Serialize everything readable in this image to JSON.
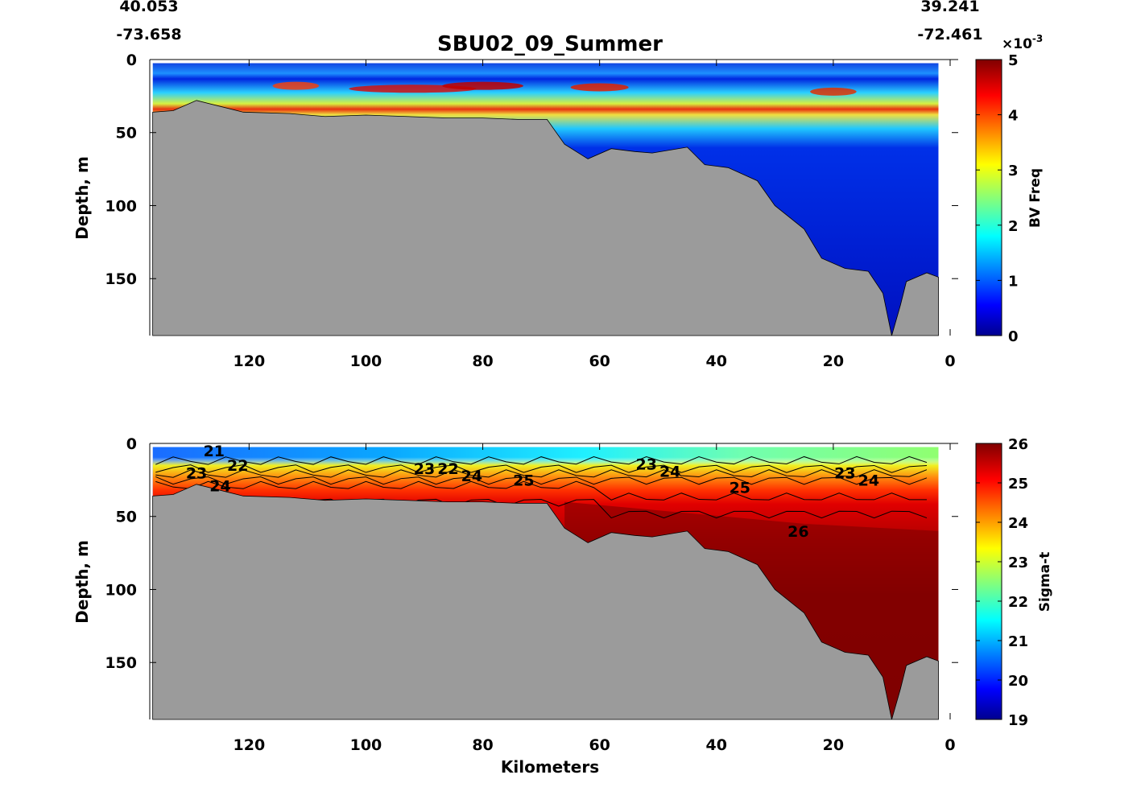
{
  "chart_data": [
    {
      "type": "heatmap",
      "title": "SBU02_09_Summer",
      "corner_labels": {
        "left_lat": "40.053",
        "left_lon": "-73.658",
        "right_lat": "39.241",
        "right_lon": "-72.461"
      },
      "xlabel": "",
      "ylabel": "Depth, m",
      "xlim": [
        137,
        0
      ],
      "ylim": [
        189,
        0
      ],
      "xticks": [
        "120",
        "100",
        "80",
        "60",
        "40",
        "20",
        "0"
      ],
      "xtick_values": [
        120,
        100,
        80,
        60,
        40,
        20,
        0
      ],
      "yticks": [
        "0",
        "50",
        "100",
        "150"
      ],
      "ytick_values": [
        0,
        50,
        100,
        150
      ],
      "colorbar": {
        "label": "BV Freq",
        "exponent": "×10",
        "exponent_power": "-3",
        "ticks": [
          "0",
          "1",
          "2",
          "3",
          "4",
          "5"
        ],
        "range": [
          0,
          5
        ]
      },
      "field_note": "max stratification band at 15-25 m depth, values up to 5e-3; below ~35 m near 0"
    },
    {
      "type": "heatmap",
      "xlabel": "Kilometers",
      "ylabel": "Depth, m",
      "xlim": [
        137,
        0
      ],
      "ylim": [
        189,
        0
      ],
      "xticks": [
        "120",
        "100",
        "80",
        "60",
        "40",
        "20",
        "0"
      ],
      "xtick_values": [
        120,
        100,
        80,
        60,
        40,
        20,
        0
      ],
      "yticks": [
        "0",
        "50",
        "100",
        "150"
      ],
      "ytick_values": [
        0,
        50,
        100,
        150
      ],
      "colorbar": {
        "label": "Sigma-t",
        "ticks": [
          "19",
          "20",
          "21",
          "22",
          "23",
          "24",
          "25",
          "26"
        ],
        "range": [
          19,
          26
        ]
      },
      "contour_labels": [
        {
          "text": "21",
          "km": 126,
          "depth": 5
        },
        {
          "text": "22",
          "km": 125,
          "depth": 15
        },
        {
          "text": "23",
          "km": 129,
          "depth": 20
        },
        {
          "text": "24",
          "km": 129,
          "depth": 29
        },
        {
          "text": "23",
          "km": 90,
          "depth": 17
        },
        {
          "text": "22",
          "km": 87,
          "depth": 17
        },
        {
          "text": "24",
          "km": 91,
          "depth": 22
        },
        {
          "text": "25",
          "km": 73,
          "depth": 25
        },
        {
          "text": "23",
          "km": 52,
          "depth": 14
        },
        {
          "text": "24",
          "km": 53,
          "depth": 19
        },
        {
          "text": "25",
          "km": 36,
          "depth": 30
        },
        {
          "text": "23",
          "km": 18,
          "depth": 20
        },
        {
          "text": "24",
          "km": 18,
          "depth": 25
        },
        {
          "text": "26",
          "km": 26,
          "depth": 60
        }
      ]
    }
  ],
  "bathymetry": [
    [
      136.5,
      36
    ],
    [
      133,
      35
    ],
    [
      129,
      28
    ],
    [
      125,
      32
    ],
    [
      121,
      36
    ],
    [
      113,
      37
    ],
    [
      107,
      39
    ],
    [
      100,
      38
    ],
    [
      93,
      39
    ],
    [
      86,
      40
    ],
    [
      80,
      40
    ],
    [
      74,
      41
    ],
    [
      69,
      41
    ],
    [
      66,
      58
    ],
    [
      62,
      68
    ],
    [
      58,
      61
    ],
    [
      54,
      63
    ],
    [
      51,
      64
    ],
    [
      45,
      60
    ],
    [
      42,
      72
    ],
    [
      38,
      74
    ],
    [
      33,
      83
    ],
    [
      30,
      100
    ],
    [
      25,
      116
    ],
    [
      22,
      136
    ],
    [
      18,
      143
    ],
    [
      14,
      145
    ],
    [
      11.5,
      160
    ],
    [
      10,
      189
    ],
    [
      8.5,
      168
    ],
    [
      7.5,
      152
    ],
    [
      4,
      146
    ],
    [
      2,
      149
    ]
  ],
  "colors": {
    "land": "#9b9b9b"
  }
}
